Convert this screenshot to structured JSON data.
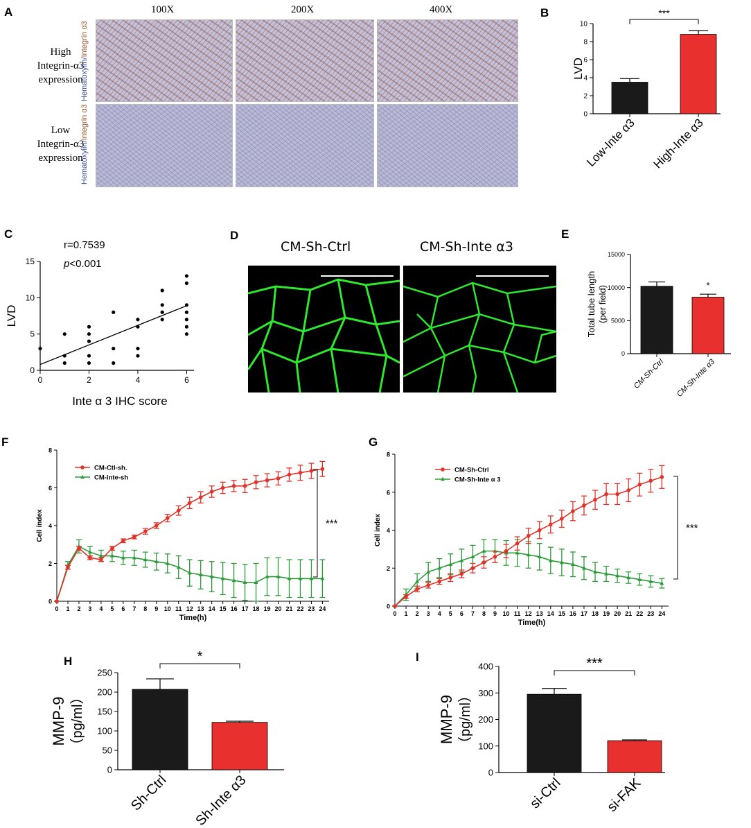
{
  "panels": {
    "A": {
      "label": "A",
      "magnifications": [
        "100X",
        "200X",
        "400X"
      ],
      "row_labels": [
        [
          "High",
          "Integrin-α3",
          "expression"
        ],
        [
          "Low",
          "Integrin-α3",
          "expression"
        ]
      ],
      "stain_label_a": "Hematoxylin/",
      "stain_label_b": "Integrin α3"
    },
    "D": {
      "label": "D",
      "titles": [
        "CM-Sh-Ctrl",
        "CM-Sh-Inte α3"
      ]
    }
  },
  "colors": {
    "black_bar": "#1a1a1a",
    "red_bar": "#e8312f",
    "red_line": "#e03228",
    "green_line": "#2b9b3a"
  },
  "chart_data": [
    {
      "id": "B",
      "label": "B",
      "type": "bar",
      "categories": [
        "Low-Inte α3",
        "High-Inte α3"
      ],
      "values": [
        3.5,
        8.8
      ],
      "errors": [
        0.4,
        0.4
      ],
      "ylabel": "LVD",
      "ylim": [
        0,
        10
      ],
      "yticks": [
        "0",
        "2",
        "4",
        "6",
        "8",
        "10"
      ],
      "significance": "***"
    },
    {
      "id": "C",
      "label": "C",
      "type": "scatter",
      "xlabel": "Inte α 3 IHC score",
      "ylabel": "LVD",
      "xlim": [
        0,
        6.3
      ],
      "ylim": [
        0,
        15
      ],
      "xticks": [
        "0",
        "2",
        "4",
        "6"
      ],
      "yticks": [
        "0",
        "5",
        "10",
        "15"
      ],
      "annotation_r": "r=0.7539",
      "annotation_p_italic": "p",
      "annotation_p_rest": "<0.001",
      "points": [
        [
          0,
          3
        ],
        [
          1,
          1
        ],
        [
          1,
          2
        ],
        [
          1,
          5
        ],
        [
          2,
          1
        ],
        [
          2,
          2
        ],
        [
          2,
          4
        ],
        [
          2,
          5
        ],
        [
          2,
          6
        ],
        [
          3,
          1
        ],
        [
          3,
          3
        ],
        [
          3,
          8
        ],
        [
          4,
          2
        ],
        [
          4,
          3
        ],
        [
          4,
          6
        ],
        [
          4,
          7
        ],
        [
          5,
          7
        ],
        [
          5,
          8
        ],
        [
          5,
          9
        ],
        [
          5,
          11
        ],
        [
          6,
          5
        ],
        [
          6,
          6
        ],
        [
          6,
          7
        ],
        [
          6,
          8
        ],
        [
          6,
          9
        ],
        [
          6,
          12
        ],
        [
          6,
          13
        ]
      ],
      "fit": [
        [
          0,
          0.8
        ],
        [
          6,
          8.9
        ]
      ]
    },
    {
      "id": "E",
      "label": "E",
      "type": "bar",
      "categories": [
        "CM-Sh-Ctrl",
        "CM-Sh-Inte α3"
      ],
      "values": [
        10200,
        8550
      ],
      "errors": [
        650,
        450
      ],
      "ylabel_line1": "Total tube length",
      "ylabel_line2": "(per field)",
      "ylim": [
        0,
        15000
      ],
      "yticks": [
        "0",
        "5000",
        "10000",
        "15000"
      ],
      "significance": "*"
    },
    {
      "id": "F",
      "label": "F",
      "type": "line",
      "x": [
        0,
        1,
        2,
        3,
        4,
        5,
        6,
        7,
        8,
        9,
        10,
        11,
        12,
        13,
        14,
        15,
        16,
        17,
        18,
        19,
        20,
        21,
        22,
        23,
        24
      ],
      "xlabel": "Time(h)",
      "ylabel": "Cell index",
      "ylim": [
        0,
        8
      ],
      "yticks": [
        "0",
        "2",
        "4",
        "6",
        "8"
      ],
      "significance": "***",
      "series": [
        {
          "name": "CM-Ctl-sh.",
          "values": [
            0,
            1.8,
            2.8,
            2.3,
            2.2,
            2.8,
            3.2,
            3.4,
            3.7,
            4.0,
            4.4,
            4.8,
            5.2,
            5.5,
            5.8,
            6.0,
            6.1,
            6.1,
            6.3,
            6.4,
            6.5,
            6.7,
            6.8,
            6.9,
            7.0
          ],
          "errors": [
            0,
            0.1,
            0.1,
            0.1,
            0.1,
            0.1,
            0.1,
            0.1,
            0.15,
            0.15,
            0.2,
            0.25,
            0.3,
            0.3,
            0.3,
            0.3,
            0.3,
            0.35,
            0.35,
            0.35,
            0.35,
            0.35,
            0.4,
            0.4,
            0.4
          ]
        },
        {
          "name": "CM-inte-sh",
          "values": [
            0,
            1.9,
            2.9,
            2.6,
            2.4,
            2.4,
            2.3,
            2.3,
            2.2,
            2.1,
            2.0,
            1.8,
            1.5,
            1.4,
            1.3,
            1.2,
            1.1,
            1.0,
            1.0,
            1.3,
            1.3,
            1.2,
            1.2,
            1.2,
            1.2
          ],
          "errors": [
            0,
            0.2,
            0.35,
            0.3,
            0.3,
            0.3,
            0.35,
            0.4,
            0.4,
            0.45,
            0.5,
            0.6,
            0.7,
            0.75,
            0.8,
            0.85,
            0.9,
            0.95,
            1.0,
            1.0,
            1.0,
            1.0,
            1.0,
            1.0,
            1.0
          ]
        }
      ]
    },
    {
      "id": "G",
      "label": "G",
      "type": "line",
      "x": [
        0,
        1,
        2,
        3,
        4,
        5,
        6,
        7,
        8,
        9,
        10,
        11,
        12,
        13,
        14,
        15,
        16,
        17,
        18,
        19,
        20,
        21,
        22,
        23,
        24
      ],
      "xlabel": "Time(h)",
      "ylabel": "Cell index",
      "ylim": [
        0,
        8
      ],
      "yticks": [
        "0",
        "2",
        "4",
        "6",
        "8"
      ],
      "significance": "***",
      "series": [
        {
          "name": "CM-Sh-Ctrl",
          "values": [
            0,
            0.5,
            0.9,
            1.1,
            1.3,
            1.5,
            1.7,
            2.0,
            2.3,
            2.6,
            2.9,
            3.3,
            3.7,
            4.0,
            4.3,
            4.6,
            5.0,
            5.3,
            5.6,
            5.9,
            5.9,
            6.1,
            6.4,
            6.6,
            6.8
          ],
          "errors": [
            0,
            0.1,
            0.15,
            0.15,
            0.15,
            0.2,
            0.2,
            0.25,
            0.3,
            0.3,
            0.35,
            0.35,
            0.4,
            0.45,
            0.45,
            0.45,
            0.5,
            0.5,
            0.5,
            0.55,
            0.55,
            0.6,
            0.6,
            0.6,
            0.6
          ]
        },
        {
          "name": "CM-Sh-Inte α 3",
          "values": [
            0,
            0.6,
            1.3,
            1.8,
            2.0,
            2.2,
            2.4,
            2.6,
            2.9,
            2.9,
            2.8,
            2.8,
            2.7,
            2.6,
            2.4,
            2.3,
            2.2,
            2.0,
            1.8,
            1.7,
            1.6,
            1.5,
            1.4,
            1.3,
            1.2
          ],
          "errors": [
            0,
            0.3,
            0.4,
            0.5,
            0.5,
            0.55,
            0.6,
            0.6,
            0.6,
            0.6,
            0.65,
            0.7,
            0.7,
            0.7,
            0.7,
            0.7,
            0.65,
            0.6,
            0.5,
            0.4,
            0.35,
            0.3,
            0.3,
            0.3,
            0.25
          ]
        }
      ]
    },
    {
      "id": "H",
      "label": "H",
      "type": "bar",
      "categories": [
        "Sh-Ctrl",
        "Sh-Inte α3"
      ],
      "values": [
        207,
        122
      ],
      "errors": [
        27,
        3
      ],
      "ylabel_line1": "MMP-9",
      "ylabel_line2": "（pg/ml）",
      "ylim": [
        0,
        250
      ],
      "yticks": [
        "0",
        "50",
        "100",
        "150",
        "200",
        "250"
      ],
      "significance": "*"
    },
    {
      "id": "I",
      "label": "I",
      "type": "bar",
      "categories": [
        "si-Ctrl",
        "si-FAK"
      ],
      "values": [
        295,
        120
      ],
      "errors": [
        22,
        3
      ],
      "ylabel_line1": "MMP-9",
      "ylabel_line2": "（pg/ml）",
      "ylim": [
        0,
        400
      ],
      "yticks": [
        "0",
        "100",
        "200",
        "300",
        "400"
      ],
      "significance": "***"
    }
  ]
}
